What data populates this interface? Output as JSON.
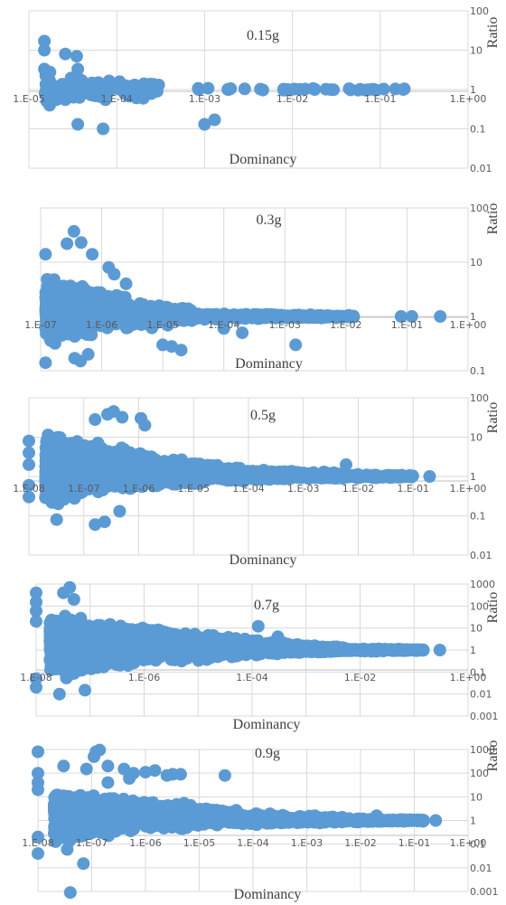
{
  "chart_data": [
    {
      "type": "scatter",
      "title": "0.15g",
      "xlabel": "Dominancy",
      "ylabel": "Ratio",
      "x_scale": "log",
      "y_scale": "log",
      "xlim": [
        1e-05,
        1
      ],
      "ylim": [
        0.01,
        100
      ],
      "x_tick_labels": [
        "1.E-05",
        "1.E-04",
        "1.E-03",
        "1.E-02",
        "1.E-01",
        "1.E+00"
      ],
      "y_tick_labels": [
        "0.01",
        "0.1",
        "1",
        "10",
        "100"
      ],
      "grid": true,
      "marker_color": "#5b9bd5",
      "seed": 11,
      "bands": [
        {
          "n": 130,
          "x": [
            1.5e-05,
            0.0003
          ],
          "y": [
            0.35,
            3.0
          ],
          "cy": 1.0
        },
        {
          "n": 35,
          "x": [
            0.0008,
            0.2
          ],
          "y": [
            0.85,
            1.15
          ],
          "cy": 1.0
        }
      ],
      "points": [
        {
          "x": 1.5e-05,
          "y": 17
        },
        {
          "x": 1.5e-05,
          "y": 10
        },
        {
          "x": 1.5e-05,
          "y": 3.3
        },
        {
          "x": 2.6e-05,
          "y": 8
        },
        {
          "x": 3.5e-05,
          "y": 7
        },
        {
          "x": 3.6e-05,
          "y": 3.3
        },
        {
          "x": 3.6e-05,
          "y": 0.13
        },
        {
          "x": 7e-05,
          "y": 0.1
        },
        {
          "x": 1.6e-05,
          "y": 0.5
        },
        {
          "x": 2.6e-05,
          "y": 0.55
        },
        {
          "x": 0.0002,
          "y": 0.6
        },
        {
          "x": 0.001,
          "y": 0.13
        },
        {
          "x": 0.0013,
          "y": 0.17
        },
        {
          "x": 0.0003,
          "y": 1.3
        }
      ]
    },
    {
      "type": "scatter",
      "title": "0.3g",
      "xlabel": "Dominancy",
      "ylabel": "Ratio",
      "x_scale": "log",
      "y_scale": "log",
      "xlim": [
        1e-07,
        1
      ],
      "ylim": [
        0.1,
        100
      ],
      "x_tick_labels": [
        "1.E-07",
        "1.E-06",
        "1.E-05",
        "1.E-04",
        "1.E-03",
        "1.E-02",
        "1.E-01",
        "1.E+00"
      ],
      "y_tick_labels": [
        "0.1",
        "1",
        "10",
        "100"
      ],
      "grid": true,
      "marker_color": "#5b9bd5",
      "seed": 23,
      "bands": [
        {
          "n": 1400,
          "x": [
            1.2e-07,
            2.5e-06
          ],
          "y": [
            0.25,
            6.0
          ],
          "cy": 1.4
        },
        {
          "n": 400,
          "x": [
            2.5e-06,
            3e-05
          ],
          "y": [
            0.5,
            2.0
          ],
          "cy": 1.1
        },
        {
          "n": 300,
          "x": [
            3e-05,
            0.002
          ],
          "y": [
            0.85,
            1.2
          ],
          "cy": 1.0
        },
        {
          "n": 60,
          "x": [
            0.002,
            0.015
          ],
          "y": [
            0.9,
            1.1
          ],
          "cy": 1.0
        }
      ],
      "points": [
        {
          "x": 3.5e-07,
          "y": 37
        },
        {
          "x": 2.7e-07,
          "y": 22
        },
        {
          "x": 4.6e-07,
          "y": 23
        },
        {
          "x": 1.2e-07,
          "y": 14
        },
        {
          "x": 7e-07,
          "y": 14
        },
        {
          "x": 1.3e-06,
          "y": 8
        },
        {
          "x": 1.6e-06,
          "y": 6
        },
        {
          "x": 2.5e-06,
          "y": 4
        },
        {
          "x": 1.2e-07,
          "y": 0.14
        },
        {
          "x": 3.6e-07,
          "y": 0.17
        },
        {
          "x": 4.5e-07,
          "y": 0.15
        },
        {
          "x": 6e-07,
          "y": 0.2
        },
        {
          "x": 1e-05,
          "y": 0.3
        },
        {
          "x": 1.4e-05,
          "y": 0.28
        },
        {
          "x": 2e-05,
          "y": 0.24
        },
        {
          "x": 0.0001,
          "y": 0.6
        },
        {
          "x": 0.0002,
          "y": 0.5
        },
        {
          "x": 0.0015,
          "y": 0.3
        },
        {
          "x": 0.08,
          "y": 1
        },
        {
          "x": 0.12,
          "y": 1
        },
        {
          "x": 0.35,
          "y": 1
        }
      ]
    },
    {
      "type": "scatter",
      "title": "0.5g",
      "xlabel": "Dominancy",
      "ylabel": "Ratio",
      "x_scale": "log",
      "y_scale": "log",
      "xlim": [
        1e-08,
        1
      ],
      "ylim": [
        0.01,
        100
      ],
      "x_tick_labels": [
        "1.E-08",
        "1.E-07",
        "1.E-06",
        "1.E-05",
        "1.E-04",
        "1.E-03",
        "1.E-02",
        "1.E-01",
        "1.E+00"
      ],
      "y_tick_labels": [
        "0.01",
        "0.1",
        "1",
        "10",
        "100"
      ],
      "grid": true,
      "marker_color": "#5b9bd5",
      "seed": 37,
      "bands": [
        {
          "n": 1800,
          "x": [
            2e-08,
            1.5e-06
          ],
          "y": [
            0.15,
            15
          ],
          "cy": 1.6
        },
        {
          "n": 600,
          "x": [
            1.5e-06,
            4e-05
          ],
          "y": [
            0.45,
            4.0
          ],
          "cy": 1.2
        },
        {
          "n": 500,
          "x": [
            4e-05,
            0.004
          ],
          "y": [
            0.7,
            1.8
          ],
          "cy": 1.05
        },
        {
          "n": 120,
          "x": [
            0.004,
            0.1
          ],
          "y": [
            0.85,
            1.2
          ],
          "cy": 1.0
        }
      ],
      "points": [
        {
          "x": 1e-08,
          "y": 8
        },
        {
          "x": 1e-08,
          "y": 4
        },
        {
          "x": 1e-08,
          "y": 2
        },
        {
          "x": 1e-08,
          "y": 0.6
        },
        {
          "x": 1e-08,
          "y": 0.3
        },
        {
          "x": 3.5e-07,
          "y": 45
        },
        {
          "x": 2.7e-07,
          "y": 38
        },
        {
          "x": 5e-07,
          "y": 32
        },
        {
          "x": 1.6e-07,
          "y": 28
        },
        {
          "x": 1.1e-06,
          "y": 30
        },
        {
          "x": 1.3e-06,
          "y": 20
        },
        {
          "x": 1.6e-07,
          "y": 0.06
        },
        {
          "x": 2.4e-07,
          "y": 0.07
        },
        {
          "x": 3.2e-08,
          "y": 0.08
        },
        {
          "x": 4.5e-07,
          "y": 0.13
        },
        {
          "x": 0.006,
          "y": 2
        },
        {
          "x": 0.2,
          "y": 1
        }
      ]
    },
    {
      "type": "scatter",
      "title": "0.7g",
      "xlabel": "Dominancy",
      "ylabel": "Ratio",
      "x_scale": "log",
      "y_scale": "log",
      "xlim": [
        1e-08,
        1
      ],
      "ylim": [
        0.001,
        1000
      ],
      "x_tick_labels": [
        "1.E-08",
        "1.E-06",
        "1.E-04",
        "1.E-02",
        "1.E+00"
      ],
      "y_tick_labels": [
        "0.001",
        "0.01",
        "0.1",
        "1",
        "10",
        "100",
        "1000"
      ],
      "grid": true,
      "marker_color": "#5b9bd5",
      "seed": 53,
      "bands": [
        {
          "n": 2000,
          "x": [
            1.8e-08,
            3e-06
          ],
          "y": [
            0.03,
            60
          ],
          "cy": 2.0
        },
        {
          "n": 900,
          "x": [
            3e-06,
            0.0002
          ],
          "y": [
            0.2,
            10
          ],
          "cy": 1.3
        },
        {
          "n": 500,
          "x": [
            0.0002,
            0.005
          ],
          "y": [
            0.6,
            2.5
          ],
          "cy": 1.05
        },
        {
          "n": 160,
          "x": [
            0.005,
            0.15
          ],
          "y": [
            0.8,
            1.25
          ],
          "cy": 1.0
        }
      ],
      "points": [
        {
          "x": 1e-08,
          "y": 400
        },
        {
          "x": 1e-08,
          "y": 150
        },
        {
          "x": 1e-08,
          "y": 60
        },
        {
          "x": 1e-08,
          "y": 20
        },
        {
          "x": 1e-08,
          "y": 0.05
        },
        {
          "x": 1e-08,
          "y": 0.02
        },
        {
          "x": 3.2e-08,
          "y": 400
        },
        {
          "x": 4.2e-08,
          "y": 700
        },
        {
          "x": 5e-08,
          "y": 200
        },
        {
          "x": 2.7e-08,
          "y": 0.01
        },
        {
          "x": 8e-08,
          "y": 0.015
        },
        {
          "x": 0.00013,
          "y": 12
        },
        {
          "x": 0.0003,
          "y": 4
        },
        {
          "x": 0.3,
          "y": 1
        }
      ]
    },
    {
      "type": "scatter",
      "title": "0.9g",
      "xlabel": "Dominancy",
      "ylabel": "Ratio",
      "x_scale": "log",
      "y_scale": "log",
      "xlim": [
        1e-08,
        1
      ],
      "ylim": [
        0.001,
        1000
      ],
      "x_tick_labels": [
        "1.E-08",
        "1.E-07",
        "1.E-06",
        "1.E-05",
        "1.E-04",
        "1.E-03",
        "1.E-02",
        "1.E-01",
        "1.E+00"
      ],
      "y_tick_labels": [
        "0.001",
        "0.01",
        "0.1",
        "1",
        "10",
        "100",
        "1000"
      ],
      "grid": true,
      "marker_color": "#5b9bd5",
      "seed": 71,
      "bands": [
        {
          "n": 1400,
          "x": [
            2e-08,
            2e-06
          ],
          "y": [
            0.08,
            25
          ],
          "cy": 2.0
        },
        {
          "n": 700,
          "x": [
            2e-06,
            5e-05
          ],
          "y": [
            0.3,
            8
          ],
          "cy": 1.4
        },
        {
          "n": 500,
          "x": [
            5e-05,
            0.005
          ],
          "y": [
            0.6,
            2.5
          ],
          "cy": 1.05
        },
        {
          "n": 140,
          "x": [
            0.005,
            0.15
          ],
          "y": [
            0.8,
            1.3
          ],
          "cy": 1.0
        }
      ],
      "points": [
        {
          "x": 1e-08,
          "y": 800
        },
        {
          "x": 1e-08,
          "y": 100
        },
        {
          "x": 1e-08,
          "y": 40
        },
        {
          "x": 1e-08,
          "y": 20
        },
        {
          "x": 1e-08,
          "y": 0.2
        },
        {
          "x": 1e-08,
          "y": 0.04
        },
        {
          "x": 3.5e-08,
          "y": 0.06
        },
        {
          "x": 4e-08,
          "y": 0.0009
        },
        {
          "x": 7e-08,
          "y": 0.015
        },
        {
          "x": 3e-08,
          "y": 200
        },
        {
          "x": 1.2e-07,
          "y": 800
        },
        {
          "x": 1.4e-07,
          "y": 950
        },
        {
          "x": 1.1e-07,
          "y": 500
        },
        {
          "x": 8e-08,
          "y": 150
        },
        {
          "x": 2e-07,
          "y": 200
        },
        {
          "x": 4e-07,
          "y": 150
        },
        {
          "x": 6e-07,
          "y": 100
        },
        {
          "x": 1e-06,
          "y": 110
        },
        {
          "x": 1.5e-06,
          "y": 130
        },
        {
          "x": 2.5e-06,
          "y": 80
        },
        {
          "x": 4.5e-06,
          "y": 90
        },
        {
          "x": 3.2e-06,
          "y": 90
        },
        {
          "x": 3e-05,
          "y": 80
        },
        {
          "x": 2e-07,
          "y": 40
        },
        {
          "x": 5e-07,
          "y": 60
        },
        {
          "x": 0.02,
          "y": 1.6
        },
        {
          "x": 0.03,
          "y": 1
        },
        {
          "x": 0.06,
          "y": 1
        },
        {
          "x": 0.12,
          "y": 1
        },
        {
          "x": 0.25,
          "y": 1
        }
      ]
    }
  ]
}
